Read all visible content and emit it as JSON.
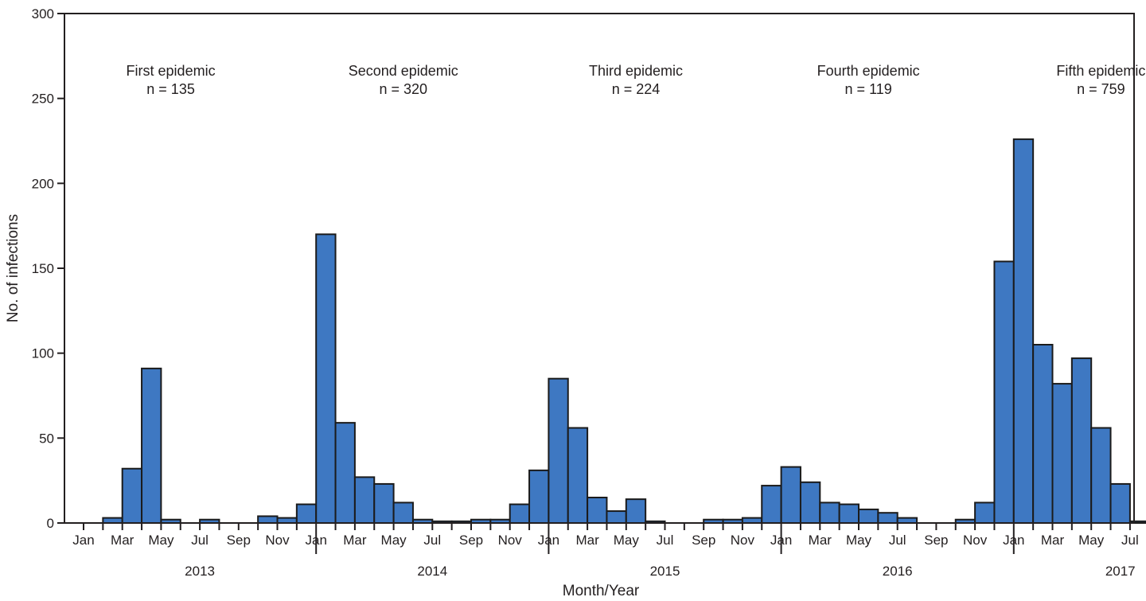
{
  "chart_data": {
    "type": "bar",
    "xlabel": "Month/Year",
    "ylabel": "No. of infections",
    "ylim": [
      0,
      300
    ],
    "yticks": [
      0,
      50,
      100,
      150,
      200,
      250,
      300
    ],
    "grid": false,
    "bar_color": "#3e78c2",
    "bar_edge_color": "#1b1b1b",
    "years": [
      "2013",
      "2014",
      "2015",
      "2016",
      "2017"
    ],
    "month_tick_labels": [
      "Jan",
      "Mar",
      "May",
      "Jul",
      "Sep",
      "Nov"
    ],
    "categories": [
      "Jan 2013",
      "Feb 2013",
      "Mar 2013",
      "Apr 2013",
      "May 2013",
      "Jun 2013",
      "Jul 2013",
      "Aug 2013",
      "Sep 2013",
      "Oct 2013",
      "Nov 2013",
      "Dec 2013",
      "Jan 2014",
      "Feb 2014",
      "Mar 2014",
      "Apr 2014",
      "May 2014",
      "Jun 2014",
      "Jul 2014",
      "Aug 2014",
      "Sep 2014",
      "Oct 2014",
      "Nov 2014",
      "Dec 2014",
      "Jan 2015",
      "Feb 2015",
      "Mar 2015",
      "Apr 2015",
      "May 2015",
      "Jun 2015",
      "Jul 2015",
      "Aug 2015",
      "Sep 2015",
      "Oct 2015",
      "Nov 2015",
      "Dec 2015",
      "Jan 2016",
      "Feb 2016",
      "Mar 2016",
      "Apr 2016",
      "May 2016",
      "Jun 2016",
      "Jul 2016",
      "Aug 2016",
      "Sep 2016",
      "Oct 2016",
      "Nov 2016",
      "Dec 2016",
      "Jan 2017",
      "Feb 2017",
      "Mar 2017",
      "Apr 2017",
      "May 2017",
      "Jun 2017",
      "Jul 2017"
    ],
    "values": [
      0,
      3,
      32,
      91,
      2,
      0,
      2,
      0,
      0,
      4,
      3,
      11,
      170,
      59,
      27,
      23,
      12,
      2,
      1,
      1,
      2,
      2,
      11,
      31,
      85,
      56,
      15,
      7,
      14,
      1,
      0,
      0,
      2,
      2,
      3,
      22,
      33,
      24,
      12,
      11,
      8,
      6,
      3,
      0,
      0,
      2,
      12,
      154,
      226,
      105,
      82,
      97,
      56,
      23,
      1
    ],
    "annotations": [
      {
        "title": "First epidemic",
        "count": "n = 135"
      },
      {
        "title": "Second epidemic",
        "count": "n = 320"
      },
      {
        "title": "Third epidemic",
        "count": "n = 224"
      },
      {
        "title": "Fourth epidemic",
        "count": "n = 119"
      },
      {
        "title": "Fifth epidemic",
        "count": "n = 759"
      }
    ]
  }
}
